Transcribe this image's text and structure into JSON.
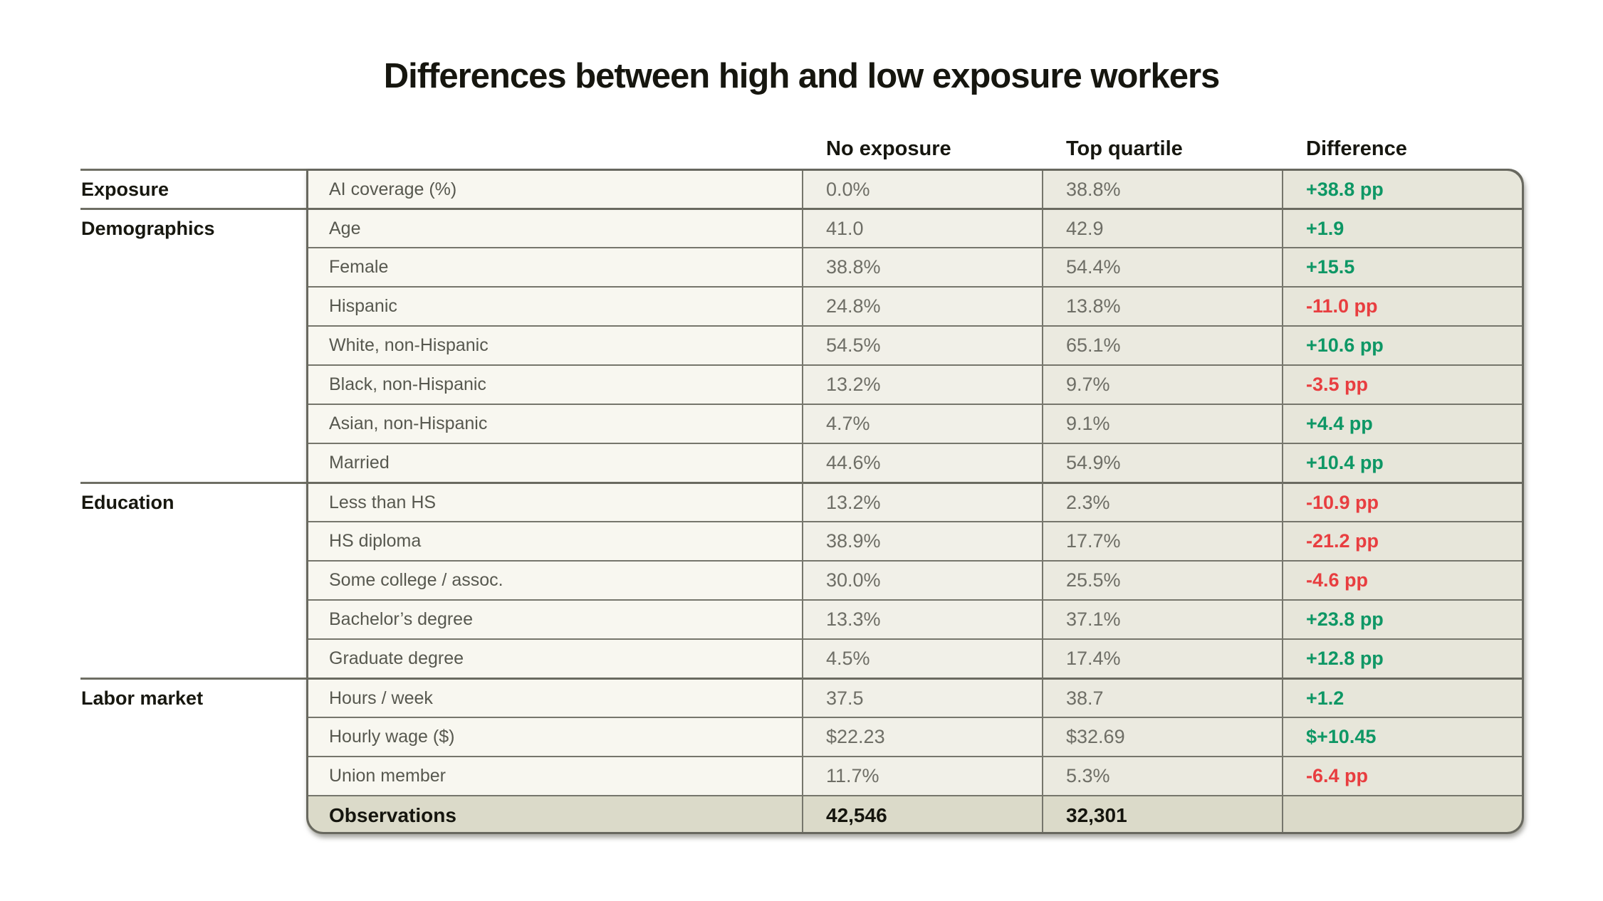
{
  "title": "Differences between high and low exposure workers",
  "colors": {
    "positive": "#0e9765",
    "negative": "#e83e40",
    "border": "#68685f",
    "label_column_bg": "#f8f7f0",
    "no_exposure_bg": "#f1f0e8",
    "top_quartile_bg": "#ebeae0",
    "difference_bg": "#e7e6da",
    "footer_bg": "#dbdac9"
  },
  "chart_data": {
    "type": "table",
    "title": "Differences between high and low exposure workers",
    "column_headers": {
      "no_exposure": "No exposure",
      "top_quartile": "Top quartile",
      "difference": "Difference"
    },
    "row_groups": [
      "Exposure",
      "Demographics",
      "Education",
      "Labor market"
    ],
    "rows": [
      {
        "group": "Exposure",
        "label": "AI coverage (%)",
        "no_exposure": "0.0%",
        "top_quartile": "38.8%",
        "difference": "+38.8 pp"
      },
      {
        "group": "Demographics",
        "label": "Age",
        "no_exposure": "41.0",
        "top_quartile": "42.9",
        "difference": "+1.9"
      },
      {
        "group": "",
        "label": "Female",
        "no_exposure": "38.8%",
        "top_quartile": "54.4%",
        "difference": "+15.5"
      },
      {
        "group": "",
        "label": "Hispanic",
        "no_exposure": "24.8%",
        "top_quartile": "13.8%",
        "difference": "-11.0 pp"
      },
      {
        "group": "",
        "label": "White, non-Hispanic",
        "no_exposure": "54.5%",
        "top_quartile": "65.1%",
        "difference": "+10.6 pp"
      },
      {
        "group": "",
        "label": "Black, non-Hispanic",
        "no_exposure": "13.2%",
        "top_quartile": "9.7%",
        "difference": "-3.5 pp"
      },
      {
        "group": "",
        "label": "Asian, non-Hispanic",
        "no_exposure": "4.7%",
        "top_quartile": "9.1%",
        "difference": "+4.4 pp"
      },
      {
        "group": "",
        "label": "Married",
        "no_exposure": "44.6%",
        "top_quartile": "54.9%",
        "difference": "+10.4 pp"
      },
      {
        "group": "Education",
        "label": "Less than HS",
        "no_exposure": "13.2%",
        "top_quartile": "2.3%",
        "difference": "-10.9 pp"
      },
      {
        "group": "",
        "label": "HS diploma",
        "no_exposure": "38.9%",
        "top_quartile": "17.7%",
        "difference": "-21.2 pp"
      },
      {
        "group": "",
        "label": "Some college / assoc.",
        "no_exposure": "30.0%",
        "top_quartile": "25.5%",
        "difference": "-4.6 pp"
      },
      {
        "group": "",
        "label": "Bachelor’s degree",
        "no_exposure": "13.3%",
        "top_quartile": "37.1%",
        "difference": "+23.8 pp"
      },
      {
        "group": "",
        "label": "Graduate degree",
        "no_exposure": "4.5%",
        "top_quartile": "17.4%",
        "difference": "+12.8 pp"
      },
      {
        "group": "Labor market",
        "label": "Hours / week",
        "no_exposure": "37.5",
        "top_quartile": "38.7",
        "difference": "+1.2"
      },
      {
        "group": "",
        "label": "Hourly wage ($)",
        "no_exposure": "$22.23",
        "top_quartile": "$32.69",
        "difference": "$+10.45"
      },
      {
        "group": "",
        "label": "Union member",
        "no_exposure": "11.7%",
        "top_quartile": "5.3%",
        "difference": "-6.4 pp"
      }
    ],
    "footer": {
      "label": "Observations",
      "no_exposure": "42,546",
      "top_quartile": "32,301",
      "difference": ""
    }
  }
}
